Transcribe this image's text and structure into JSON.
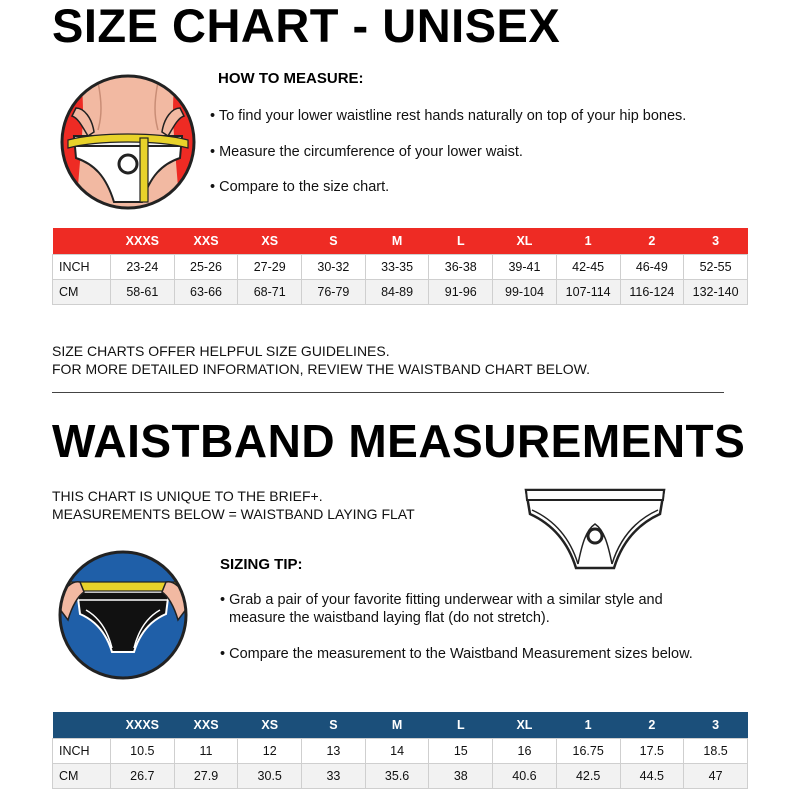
{
  "size_chart": {
    "title": "SIZE CHART - UNISEX",
    "how_to_measure": {
      "heading": "HOW TO MEASURE:",
      "bullets": [
        "• To find your lower waistline rest hands naturally on top of your hip bones.",
        "• Measure the circumference of your lower waist.",
        "• Compare to the size chart."
      ]
    },
    "table": {
      "headers": [
        "",
        "XXXS",
        "XXS",
        "XS",
        "S",
        "M",
        "L",
        "XL",
        "1",
        "2",
        "3"
      ],
      "rows": [
        [
          "INCH",
          "23-24",
          "25-26",
          "27-29",
          "30-32",
          "33-35",
          "36-38",
          "39-41",
          "42-45",
          "46-49",
          "52-55"
        ],
        [
          "CM",
          "58-61",
          "63-66",
          "68-71",
          "76-79",
          "84-89",
          "91-96",
          "99-104",
          "107-114",
          "116-124",
          "132-140"
        ]
      ]
    },
    "notes": [
      "SIZE CHARTS OFFER HELPFUL SIZE GUIDELINES.",
      "FOR MORE DETAILED INFORMATION, REVIEW THE WAISTBAND CHART BELOW."
    ]
  },
  "waistband": {
    "title": "WAISTBAND MEASUREMENTS",
    "notes": [
      "THIS CHART IS UNIQUE TO THE BRIEF+.",
      "MEASUREMENTS BELOW = WAISTBAND LAYING FLAT"
    ],
    "sizing_tip": {
      "heading": "SIZING TIP:",
      "bullets": [
        "• Grab a pair of your favorite fitting underwear with a similar style and",
        "measure the waistband laying flat (do not stretch).",
        "• Compare the measurement to the Waistband Measurement sizes below."
      ]
    },
    "table": {
      "headers": [
        "",
        "XXXS",
        "XXS",
        "XS",
        "S",
        "M",
        "L",
        "XL",
        "1",
        "2",
        "3"
      ],
      "rows": [
        [
          "INCH",
          "10.5",
          "11",
          "12",
          "13",
          "14",
          "15",
          "16",
          "16.75",
          "17.5",
          "18.5"
        ],
        [
          "CM",
          "26.7",
          "27.9",
          "30.5",
          "33",
          "35.6",
          "38",
          "40.6",
          "42.5",
          "44.5",
          "47"
        ]
      ]
    }
  },
  "colors": {
    "red_header": "#ee2b24",
    "blue_header": "#1b4f7a",
    "tape_yellow": "#e8d22a",
    "circle_blue": "#1f5fa8"
  },
  "icons": {
    "measure_hips": "hips-measuring-illustration-icon",
    "brief": "brief-outline-icon",
    "waistband_measure": "waistband-measuring-illustration-icon"
  }
}
